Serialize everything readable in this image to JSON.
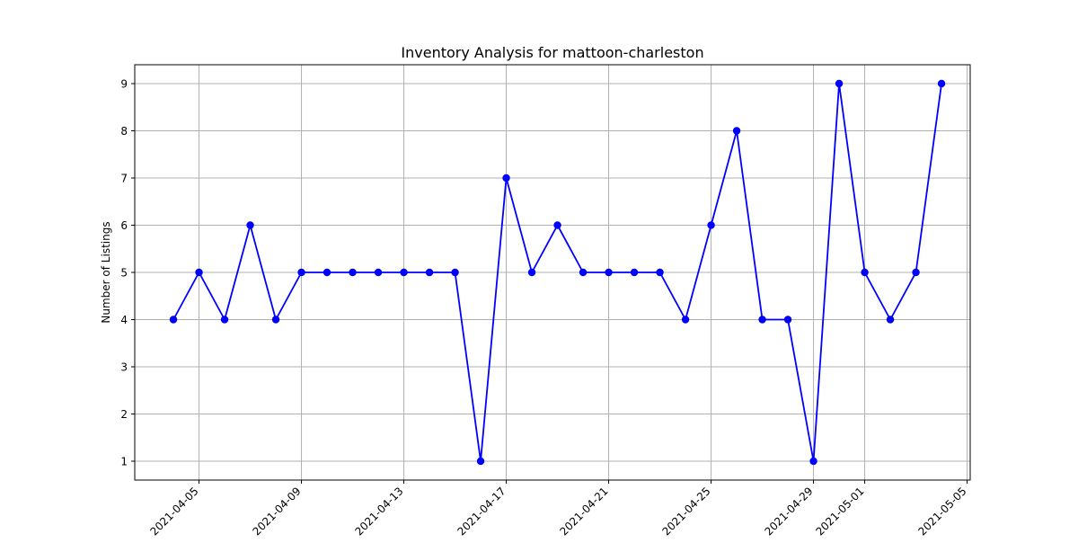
{
  "chart_data": {
    "type": "line",
    "title": "Inventory Analysis for mattoon-charleston",
    "xlabel": "",
    "ylabel": "Number of Listings",
    "x": [
      "2021-04-04",
      "2021-04-05",
      "2021-04-06",
      "2021-04-07",
      "2021-04-08",
      "2021-04-09",
      "2021-04-10",
      "2021-04-11",
      "2021-04-12",
      "2021-04-13",
      "2021-04-14",
      "2021-04-15",
      "2021-04-16",
      "2021-04-17",
      "2021-04-18",
      "2021-04-19",
      "2021-04-20",
      "2021-04-21",
      "2021-04-22",
      "2021-04-23",
      "2021-04-24",
      "2021-04-25",
      "2021-04-26",
      "2021-04-27",
      "2021-04-28",
      "2021-04-29",
      "2021-04-30",
      "2021-05-01",
      "2021-05-02",
      "2021-05-03",
      "2021-05-04"
    ],
    "series": [
      {
        "values": [
          4,
          5,
          4,
          6,
          4,
          5,
          5,
          5,
          5,
          5,
          5,
          5,
          1,
          7,
          5,
          6,
          5,
          5,
          5,
          5,
          4,
          6,
          8,
          4,
          4,
          1,
          9,
          5,
          4,
          5,
          9
        ],
        "color": "#0000ff",
        "marker": "circle"
      }
    ],
    "xticks": [
      "2021-04-05",
      "2021-04-09",
      "2021-04-13",
      "2021-04-17",
      "2021-04-21",
      "2021-04-25",
      "2021-04-29",
      "2021-05-01",
      "2021-05-05"
    ],
    "yticks": [
      1,
      2,
      3,
      4,
      5,
      6,
      7,
      8,
      9
    ],
    "xlim": [
      "2021-04-02",
      "2021-05-05"
    ],
    "ylim": [
      0.6,
      9.4
    ],
    "grid": true
  }
}
